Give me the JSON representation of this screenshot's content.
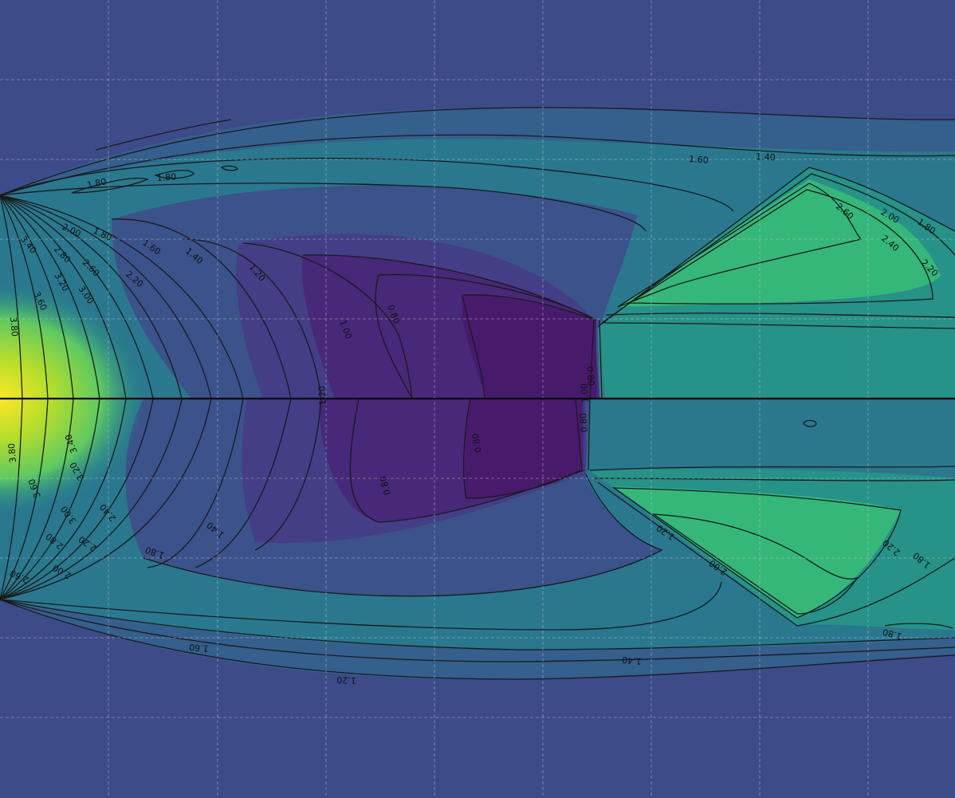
{
  "chart_data": {
    "type": "heatmap",
    "title": "",
    "xlabel": "",
    "ylabel": "",
    "colormap": "viridis",
    "grid": true,
    "contour_levels": [
      0.8,
      1.0,
      1.2,
      1.4,
      1.6,
      1.8,
      2.0,
      2.2,
      2.4,
      2.6,
      2.8,
      3.0,
      3.2,
      3.4,
      3.6,
      3.8
    ],
    "colors": {
      "background": "#3d4b89",
      "outer_band": "#355f8d",
      "mid_band": "#2a788e",
      "inner_band": "#21918c",
      "low_core": "#481a6c",
      "low_ring": "#433e85",
      "high_core": "#fde725",
      "high_ring": "#b5de2b",
      "shock_core": "#35b779",
      "shock_ring": "#22a884"
    },
    "panels": [
      {
        "label_values": [
          "1.80",
          "1.80",
          "1.60",
          "1.40",
          "2.60",
          "2.00",
          "1.80",
          "2.40",
          "2.20",
          "1.80",
          "2.00",
          "1.60",
          "1.40",
          "1.20",
          "1.00",
          "0.80",
          "0.80",
          "3.40",
          "2.80",
          "2.60",
          "2.20",
          "3.20",
          "3.00",
          "3.60",
          "3.80"
        ]
      },
      {
        "label_values": [
          "1.20",
          "1.00",
          "0.80",
          "0.80",
          "0.80",
          "3.80",
          "3.60",
          "3.40",
          "3.20",
          "3.00",
          "2.40",
          "2.80",
          "2.20",
          "2.60",
          "2.00",
          "1.80",
          "1.40",
          "1.20",
          "2.00",
          "2.20",
          "1.80",
          "1.80",
          "1.60",
          "1.40",
          "1.20"
        ]
      }
    ]
  }
}
